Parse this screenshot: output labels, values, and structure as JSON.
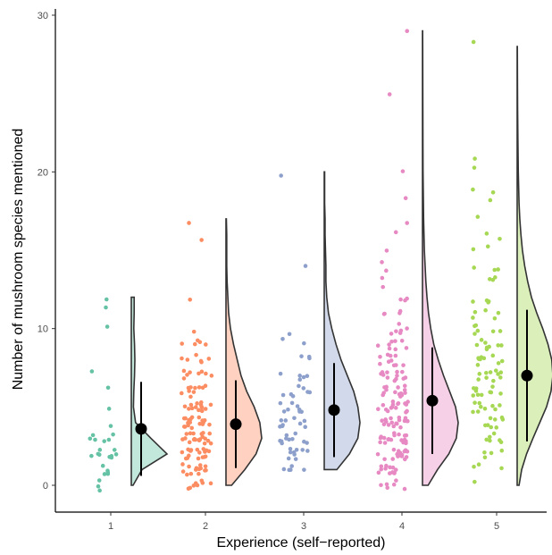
{
  "chart_data": {
    "type": "raincloud",
    "xlabel": "Experience (self−reported)",
    "ylabel": "Number of mushroom species mentioned",
    "categories": [
      "1",
      "2",
      "3",
      "4",
      "5"
    ],
    "y_ticks": [
      "0",
      "10",
      "20",
      "30"
    ],
    "y_tick_values": [
      0,
      10,
      20,
      30
    ],
    "ylim": [
      -1.8,
      30.6
    ],
    "grid": false,
    "colors": [
      "#66c2a5",
      "#fc8d62",
      "#8da0cb",
      "#e78ac3",
      "#a6d854"
    ],
    "series": [
      {
        "category": "1",
        "n": 30,
        "max": 12,
        "mean": 3.6,
        "sd_low": 0.6,
        "sd_high": 6.6,
        "points": [
          12,
          11,
          10,
          7,
          6,
          5,
          4,
          3,
          3,
          3,
          3,
          3,
          3,
          2,
          2,
          2,
          2,
          2,
          2,
          2,
          2,
          2,
          1,
          1,
          1,
          1,
          1,
          0,
          0,
          0
        ],
        "density": [
          [
            0,
            0.05
          ],
          [
            1,
            0.3
          ],
          [
            2,
            1.0
          ],
          [
            3,
            0.55
          ],
          [
            4,
            0.12
          ],
          [
            5,
            0.06
          ],
          [
            6,
            0.07
          ],
          [
            7,
            0.09
          ],
          [
            8,
            0.1
          ],
          [
            9,
            0.09
          ],
          [
            10,
            0.07
          ],
          [
            11,
            0.08
          ],
          [
            12,
            0.08
          ]
        ]
      },
      {
        "category": "2",
        "n": 200,
        "max": 17,
        "mean": 3.9,
        "sd_low": 1.1,
        "sd_high": 6.7,
        "points": [
          17,
          16,
          12,
          10,
          9,
          9,
          9,
          9,
          9,
          8,
          8,
          8,
          8,
          8,
          8,
          7,
          7,
          7,
          7,
          7,
          7,
          7,
          7,
          6,
          6,
          6,
          6,
          6,
          6,
          6,
          6,
          6,
          6,
          5,
          5,
          5,
          5,
          5,
          5,
          5,
          5,
          5,
          5,
          5,
          5,
          5,
          5,
          4,
          4,
          4,
          4,
          4,
          4,
          4,
          4,
          4,
          4,
          4,
          4,
          4,
          4,
          4,
          4,
          4,
          4,
          3,
          3,
          3,
          3,
          3,
          3,
          3,
          3,
          3,
          3,
          3,
          3,
          3,
          3,
          3,
          3,
          3,
          3,
          3,
          3,
          2,
          2,
          2,
          2,
          2,
          2,
          2,
          2,
          2,
          2,
          2,
          2,
          2,
          2,
          2,
          2,
          2,
          2,
          1,
          1,
          1,
          1,
          1,
          1,
          1,
          1,
          1,
          1,
          1,
          1,
          1,
          1,
          0,
          0,
          0,
          0,
          0,
          0,
          0,
          0
        ],
        "density": [
          [
            0,
            0.15
          ],
          [
            1,
            0.5
          ],
          [
            2,
            0.8
          ],
          [
            3,
            0.95
          ],
          [
            4,
            0.9
          ],
          [
            5,
            0.75
          ],
          [
            6,
            0.55
          ],
          [
            7,
            0.4
          ],
          [
            8,
            0.3
          ],
          [
            9,
            0.2
          ],
          [
            10,
            0.12
          ],
          [
            11,
            0.07
          ],
          [
            12,
            0.05
          ],
          [
            13,
            0.03
          ],
          [
            14,
            0.02
          ],
          [
            15,
            0.02
          ],
          [
            16,
            0.02
          ],
          [
            17,
            0.01
          ]
        ]
      },
      {
        "category": "3",
        "n": 75,
        "max": 20,
        "mean": 4.8,
        "sd_low": 1.8,
        "sd_high": 7.8,
        "points": [
          20,
          14,
          10,
          9,
          9,
          8,
          8,
          8,
          7,
          7,
          7,
          7,
          7,
          6,
          6,
          6,
          6,
          6,
          6,
          6,
          5,
          5,
          5,
          5,
          5,
          5,
          5,
          5,
          4,
          4,
          4,
          4,
          4,
          4,
          4,
          4,
          4,
          3,
          3,
          3,
          3,
          3,
          3,
          3,
          3,
          3,
          3,
          2,
          2,
          2,
          2,
          2,
          2,
          2,
          2,
          2,
          1,
          1,
          1,
          1,
          1
        ],
        "density": [
          [
            1,
            0.3
          ],
          [
            2,
            0.6
          ],
          [
            3,
            0.8
          ],
          [
            4,
            0.85
          ],
          [
            5,
            0.8
          ],
          [
            6,
            0.7
          ],
          [
            7,
            0.55
          ],
          [
            8,
            0.4
          ],
          [
            9,
            0.28
          ],
          [
            10,
            0.18
          ],
          [
            11,
            0.1
          ],
          [
            12,
            0.06
          ],
          [
            13,
            0.04
          ],
          [
            14,
            0.04
          ],
          [
            15,
            0.03
          ],
          [
            16,
            0.02
          ],
          [
            17,
            0.02
          ],
          [
            18,
            0.01
          ],
          [
            19,
            0.01
          ],
          [
            20,
            0.01
          ]
        ]
      },
      {
        "category": "4",
        "n": 400,
        "max": 29,
        "mean": 5.4,
        "sd_low": 2.0,
        "sd_high": 8.8,
        "points": [
          29,
          25,
          20,
          18,
          17,
          16,
          15,
          14,
          14,
          13,
          13,
          12,
          12,
          12,
          11,
          11,
          11,
          11,
          10,
          10,
          10,
          10,
          10,
          10,
          9,
          9,
          9,
          9,
          9,
          9,
          9,
          9,
          8,
          8,
          8,
          8,
          8,
          8,
          8,
          8,
          8,
          8,
          7,
          7,
          7,
          7,
          7,
          7,
          7,
          7,
          7,
          7,
          7,
          7,
          6,
          6,
          6,
          6,
          6,
          6,
          6,
          6,
          6,
          6,
          6,
          6,
          6,
          6,
          5,
          5,
          5,
          5,
          5,
          5,
          5,
          5,
          5,
          5,
          5,
          5,
          5,
          5,
          5,
          5,
          4,
          4,
          4,
          4,
          4,
          4,
          4,
          4,
          4,
          4,
          4,
          4,
          4,
          4,
          4,
          4,
          4,
          4,
          3,
          3,
          3,
          3,
          3,
          3,
          3,
          3,
          3,
          3,
          3,
          3,
          3,
          3,
          3,
          3,
          3,
          3,
          2,
          2,
          2,
          2,
          2,
          2,
          2,
          2,
          2,
          2,
          2,
          2,
          2,
          2,
          2,
          2,
          1,
          1,
          1,
          1,
          1,
          1,
          1,
          1,
          1,
          1,
          1,
          1,
          0,
          0,
          0,
          0,
          0,
          0
        ],
        "density": [
          [
            0,
            0.15
          ],
          [
            1,
            0.4
          ],
          [
            2,
            0.7
          ],
          [
            3,
            0.9
          ],
          [
            4,
            0.95
          ],
          [
            5,
            0.88
          ],
          [
            6,
            0.72
          ],
          [
            7,
            0.56
          ],
          [
            8,
            0.42
          ],
          [
            9,
            0.3
          ],
          [
            10,
            0.22
          ],
          [
            11,
            0.16
          ],
          [
            12,
            0.12
          ],
          [
            13,
            0.09
          ],
          [
            14,
            0.07
          ],
          [
            15,
            0.05
          ],
          [
            16,
            0.04
          ],
          [
            17,
            0.03
          ],
          [
            18,
            0.025
          ],
          [
            19,
            0.02
          ],
          [
            20,
            0.015
          ],
          [
            22,
            0.012
          ],
          [
            24,
            0.01
          ],
          [
            26,
            0.008
          ],
          [
            28,
            0.006
          ],
          [
            29,
            0.004
          ]
        ]
      },
      {
        "category": "5",
        "n": 260,
        "max": 28,
        "mean": 7.0,
        "sd_low": 2.8,
        "sd_high": 11.2,
        "points": [
          28,
          21,
          20,
          19,
          19,
          18,
          17,
          16,
          16,
          15,
          15,
          14,
          14,
          14,
          13,
          13,
          13,
          12,
          12,
          12,
          12,
          11,
          11,
          11,
          11,
          11,
          10,
          10,
          10,
          10,
          10,
          10,
          9,
          9,
          9,
          9,
          9,
          9,
          9,
          9,
          8,
          8,
          8,
          8,
          8,
          8,
          8,
          8,
          8,
          7,
          7,
          7,
          7,
          7,
          7,
          7,
          7,
          7,
          7,
          6,
          6,
          6,
          6,
          6,
          6,
          6,
          6,
          6,
          6,
          5,
          5,
          5,
          5,
          5,
          5,
          5,
          5,
          5,
          4,
          4,
          4,
          4,
          4,
          4,
          4,
          4,
          3,
          3,
          3,
          3,
          3,
          3,
          2,
          2,
          2,
          2,
          1,
          1,
          1,
          0
        ],
        "density": [
          [
            0,
            0.05
          ],
          [
            1,
            0.12
          ],
          [
            2,
            0.25
          ],
          [
            3,
            0.42
          ],
          [
            4,
            0.6
          ],
          [
            5,
            0.78
          ],
          [
            6,
            0.9
          ],
          [
            7,
            0.95
          ],
          [
            8,
            0.92
          ],
          [
            9,
            0.82
          ],
          [
            10,
            0.68
          ],
          [
            11,
            0.52
          ],
          [
            12,
            0.38
          ],
          [
            13,
            0.28
          ],
          [
            14,
            0.2
          ],
          [
            15,
            0.14
          ],
          [
            16,
            0.1
          ],
          [
            17,
            0.07
          ],
          [
            18,
            0.05
          ],
          [
            19,
            0.04
          ],
          [
            20,
            0.03
          ],
          [
            22,
            0.02
          ],
          [
            24,
            0.012
          ],
          [
            26,
            0.008
          ],
          [
            28,
            0.005
          ]
        ]
      }
    ]
  }
}
